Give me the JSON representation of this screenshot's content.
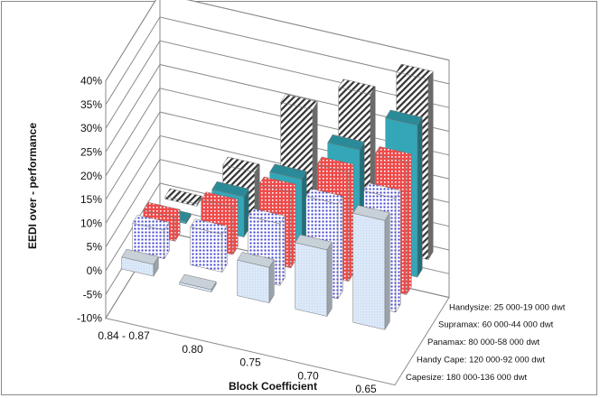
{
  "chart_data": {
    "type": "bar",
    "subtype": "3d-column",
    "title": "",
    "xlabel": "Block Coefficient",
    "ylabel": "EEDI over - performance",
    "ylim": [
      -0.1,
      0.4
    ],
    "yticks": [
      "-10%",
      "-5%",
      "0%",
      "5%",
      "10%",
      "15%",
      "20%",
      "25%",
      "30%",
      "35%",
      "40%"
    ],
    "categories": [
      "0.84 - 0.87",
      "0.80",
      "0.75",
      "0.70",
      "0.65"
    ],
    "series": [
      {
        "name": "Capesize: 180 000-136 000 dwt",
        "values": [
          0.025,
          -0.005,
          0.075,
          0.14,
          0.23
        ]
      },
      {
        "name": "Handy Cape: 120 000-92 000 dwt",
        "values": [
          0.06,
          0.08,
          0.13,
          0.2,
          0.24
        ]
      },
      {
        "name": "Panamax: 80 000-58 000 dwt",
        "values": [
          0.05,
          0.1,
          0.16,
          0.23,
          0.28
        ]
      },
      {
        "name": "Supramax: 60 000-44 000 dwt",
        "values": [
          0.005,
          0.085,
          0.15,
          0.24,
          0.32
        ]
      },
      {
        "name": "Handysize: 25 000-19 000 dwt",
        "values": [
          0.005,
          0.1,
          0.26,
          0.32,
          0.38
        ]
      }
    ],
    "grid": true,
    "legend": "right-depth-axis"
  },
  "colors": {
    "capesize": "#dbe8f8",
    "handy_cape": "#3b3fd1",
    "panamax": "#ef4b4b",
    "supramax": "#33a7b8",
    "handysize": "#444444"
  }
}
